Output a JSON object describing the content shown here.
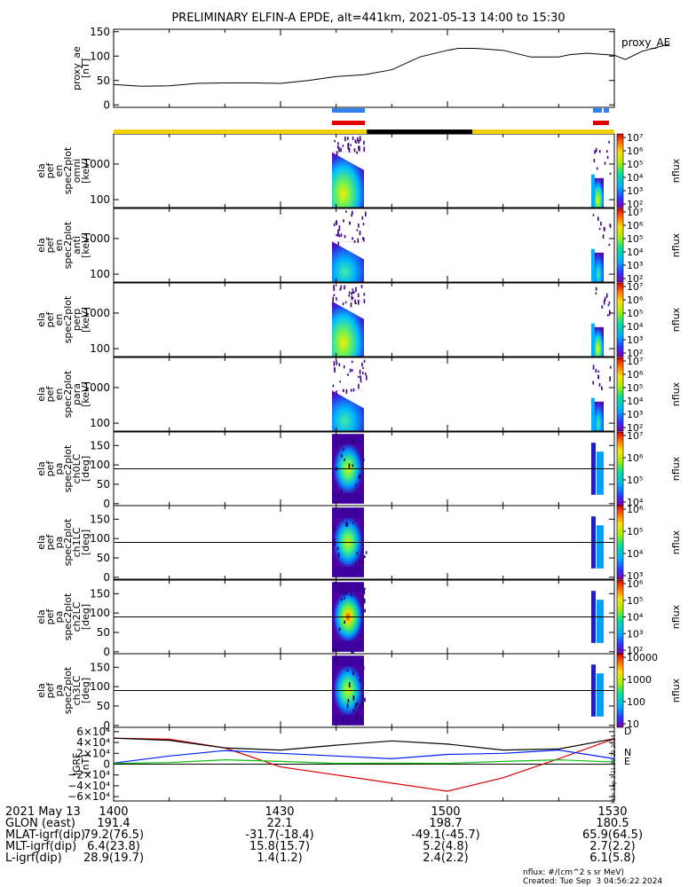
{
  "title": "PRELIMINARY ELFIN-A EPDE, alt=441km, 2021-05-13 14:00 to 15:30",
  "chart_data": [
    {
      "id": "proxy_ae",
      "type": "line",
      "ylabel": [
        "proxy_ae",
        "[nT]"
      ],
      "series_name": "proxy_AE",
      "ylim": [
        -5,
        155
      ],
      "yticks": [
        "0",
        "50",
        "100",
        "150"
      ],
      "x_minutes": [
        0,
        5,
        10,
        15,
        20,
        25,
        30,
        35,
        40,
        45,
        50,
        55,
        60,
        62,
        65,
        70,
        75,
        80,
        82,
        85,
        90,
        92,
        95,
        100
      ],
      "values": [
        42,
        38,
        39,
        44,
        45,
        45,
        44,
        50,
        58,
        62,
        72,
        98,
        112,
        116,
        116,
        112,
        98,
        98,
        103,
        106,
        102,
        93,
        110,
        125
      ]
    },
    {
      "id": "en_omni",
      "type": "heatmap",
      "ylabel": [
        "ela",
        "pef",
        "en",
        "spec2plot",
        "omni",
        "[keV]"
      ],
      "ylim": [
        60,
        7000
      ],
      "yscale": "log",
      "yticks": [
        "100",
        "1000"
      ],
      "zlabel": "nflux",
      "zticks": [
        "10²",
        "10³",
        "10⁴",
        "10⁵",
        "10⁶",
        "10⁷"
      ]
    },
    {
      "id": "en_anti",
      "type": "heatmap",
      "ylabel": [
        "ela",
        "pef",
        "en",
        "spec2plot",
        "anti",
        "[keV]"
      ],
      "ylim": [
        60,
        7000
      ],
      "yscale": "log",
      "yticks": [
        "100",
        "1000"
      ],
      "zlabel": "nflux",
      "zticks": [
        "10²",
        "10³",
        "10⁴",
        "10⁵",
        "10⁶",
        "10⁷"
      ]
    },
    {
      "id": "en_perp",
      "type": "heatmap",
      "ylabel": [
        "ela",
        "pef",
        "en",
        "spec2plot",
        "perp",
        "[keV]"
      ],
      "ylim": [
        60,
        7000
      ],
      "yscale": "log",
      "yticks": [
        "100",
        "1000"
      ],
      "zlabel": "nflux",
      "zticks": [
        "10²",
        "10³",
        "10⁴",
        "10⁵",
        "10⁶",
        "10⁷"
      ]
    },
    {
      "id": "en_para",
      "type": "heatmap",
      "ylabel": [
        "ela",
        "pef",
        "en",
        "spec2plot",
        "para",
        "[keV]"
      ],
      "ylim": [
        60,
        7000
      ],
      "yscale": "log",
      "yticks": [
        "100",
        "1000"
      ],
      "zlabel": "nflux",
      "zticks": [
        "10²",
        "10³",
        "10⁴",
        "10⁵",
        "10⁶",
        "10⁷"
      ]
    },
    {
      "id": "pa_ch0LC",
      "type": "heatmap",
      "ylabel": [
        "ela",
        "pef",
        "pa",
        "spec2plot",
        "ch0LC",
        "[deg]"
      ],
      "ylim": [
        -5,
        185
      ],
      "yticks": [
        "0",
        "50",
        "100",
        "150"
      ],
      "zlabel": "nflux",
      "zticks": [
        "10⁴",
        "10⁵",
        "10⁶",
        "10⁷"
      ]
    },
    {
      "id": "pa_ch1LC",
      "type": "heatmap",
      "ylabel": [
        "ela",
        "pef",
        "pa",
        "spec2plot",
        "ch1LC",
        "[deg]"
      ],
      "ylim": [
        -5,
        185
      ],
      "yticks": [
        "0",
        "50",
        "100",
        "150"
      ],
      "zlabel": "nflux",
      "zticks": [
        "10³",
        "10⁴",
        "10⁵",
        "10⁶"
      ]
    },
    {
      "id": "pa_ch2LC",
      "type": "heatmap",
      "ylabel": [
        "ela",
        "pef",
        "pa",
        "spec2plot",
        "ch2LC",
        "[deg]"
      ],
      "ylim": [
        -5,
        185
      ],
      "yticks": [
        "0",
        "50",
        "100",
        "150"
      ],
      "zlabel": "nflux",
      "zticks": [
        "10²",
        "10³",
        "10⁴",
        "10⁵",
        "10⁶"
      ]
    },
    {
      "id": "pa_ch3LC",
      "type": "heatmap",
      "ylabel": [
        "ela",
        "pef",
        "pa",
        "spec2plot",
        "ch3LC",
        "[deg]"
      ],
      "ylim": [
        -5,
        185
      ],
      "yticks": [
        "0",
        "50",
        "100",
        "150"
      ],
      "zlabel": "nflux",
      "zticks": [
        "10",
        "100",
        "1000",
        "10000"
      ]
    },
    {
      "id": "igrf",
      "type": "line",
      "ylabel": [
        "IGRF",
        "[nT]"
      ],
      "ylim": [
        -68000,
        68000
      ],
      "yticks": [
        "6×10⁴",
        "4×10⁴",
        "2×10⁴",
        "0",
        "−2×10⁴",
        "−4×10⁴",
        "−6×10⁴"
      ],
      "x_minutes": [
        0,
        10,
        20,
        30,
        40,
        50,
        60,
        70,
        80,
        90
      ],
      "series": [
        {
          "name": "D",
          "color": "#d80000",
          "values": [
            48000,
            46000,
            30000,
            -5000,
            -20000,
            -35000,
            -50000,
            -25000,
            10000,
            47000
          ]
        },
        {
          "name": "N",
          "color": "#0020ff",
          "values": [
            2000,
            15000,
            25000,
            20000,
            15000,
            10000,
            18000,
            20000,
            26000,
            10000
          ]
        },
        {
          "name": "E",
          "color": "#10c010",
          "values": [
            1500,
            3000,
            8000,
            5000,
            1500,
            2000,
            1500,
            5000,
            8000,
            4000
          ]
        },
        {
          "name": "",
          "color": "#000000",
          "values": [
            48000,
            44000,
            30000,
            26000,
            35000,
            43000,
            37000,
            26000,
            28000,
            47000
          ]
        }
      ]
    }
  ],
  "spacecraft_bars": {
    "x_minutes": [
      45.5,
      59,
      60,
      64.5,
      65.5
    ],
    "colors": [
      "#f0d000",
      "#000000",
      "#000000",
      "#f0d000",
      "#3080f0",
      "#e00000"
    ]
  },
  "side_stamp": "Mon Sep  3 21:36:22 2024",
  "ephemeris": {
    "rows": [
      {
        "label": "2021 May 13",
        "values": [
          "1400",
          "1430",
          "1500",
          "1530"
        ]
      },
      {
        "label": "GLON (east)",
        "values": [
          "191.4",
          "22.1",
          "198.7",
          "180.5"
        ]
      },
      {
        "label": "MLAT-igrf(dip)",
        "values": [
          "79.2(76.5)",
          "-31.7(-18.4)",
          "-49.1(-45.7)",
          "65.9(64.5)"
        ]
      },
      {
        "label": "MLT-igrf(dip)",
        "values": [
          "6.4(23.8)",
          "15.8(15.7)",
          "5.2(4.8)",
          "2.7(2.2)"
        ]
      },
      {
        "label": "L-igrf(dip)",
        "values": [
          "28.9(19.7)",
          "1.4(1.2)",
          "2.4(2.2)",
          "6.1(5.8)"
        ]
      }
    ]
  },
  "footer": {
    "units": "nflux: #/(cm^2 s sr MeV)",
    "created": "Created: Tue Sep  3 04:56:22 2024"
  }
}
